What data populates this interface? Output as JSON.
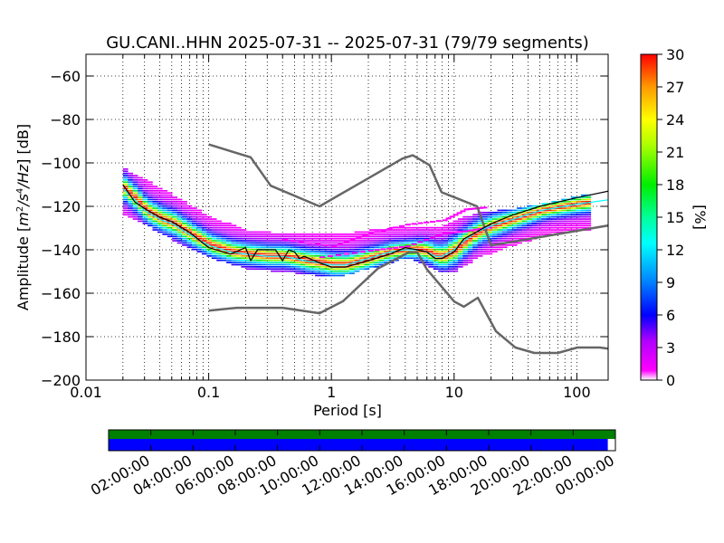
{
  "chart_data": {
    "type": "heatmap",
    "title": "GU.CANI..HHN   2025-07-31 -- 2025-07-31  (79/79 segments)",
    "xlabel": "Period [s]",
    "ylabel": "Amplitude [m²/s⁴/Hz] [dB]",
    "x_scale": "log",
    "xlim": [
      0.01,
      180
    ],
    "ylim": [
      -200,
      -50
    ],
    "x_ticks": [
      {
        "value": 0.01,
        "label": "0.01"
      },
      {
        "value": 0.1,
        "label": "0.1"
      },
      {
        "value": 1,
        "label": "1"
      },
      {
        "value": 10,
        "label": "10"
      },
      {
        "value": 100,
        "label": "100"
      }
    ],
    "y_ticks": [
      {
        "value": -60,
        "label": "−60"
      },
      {
        "value": -80,
        "label": "−80"
      },
      {
        "value": -100,
        "label": "−100"
      },
      {
        "value": -120,
        "label": "−120"
      },
      {
        "value": -140,
        "label": "−140"
      },
      {
        "value": -160,
        "label": "−160"
      },
      {
        "value": -180,
        "label": "−180"
      },
      {
        "value": -200,
        "label": "−200"
      }
    ],
    "grid": true,
    "colorbar": {
      "label": "[%]",
      "range": [
        0,
        30
      ],
      "ticks": [
        "0",
        "3",
        "6",
        "9",
        "12",
        "15",
        "18",
        "21",
        "24",
        "27",
        "30"
      ]
    },
    "reference_curves": {
      "new_high_noise_model": [
        [
          0.1,
          -91.5
        ],
        [
          0.22,
          -97.4
        ],
        [
          0.32,
          -110.5
        ],
        [
          0.8,
          -120
        ],
        [
          3.8,
          -98
        ],
        [
          4.6,
          -96.5
        ],
        [
          6.3,
          -101
        ],
        [
          7.9,
          -113.5
        ],
        [
          15.4,
          -120
        ],
        [
          20,
          -138
        ],
        [
          354,
          -126
        ]
      ],
      "new_low_noise_model": [
        [
          0.1,
          -168
        ],
        [
          0.17,
          -166.7
        ],
        [
          0.4,
          -166.7
        ],
        [
          0.8,
          -169.2
        ],
        [
          1.24,
          -163.7
        ],
        [
          2.4,
          -148.6
        ],
        [
          4.3,
          -141.1
        ],
        [
          5,
          -141.1
        ],
        [
          6,
          -149
        ],
        [
          10,
          -163.8
        ],
        [
          12,
          -166.2
        ],
        [
          15.6,
          -162.1
        ],
        [
          21.9,
          -177.5
        ],
        [
          31.6,
          -185
        ],
        [
          45,
          -187.5
        ],
        [
          70,
          -187.5
        ],
        [
          101,
          -185
        ],
        [
          154,
          -185
        ],
        [
          328,
          -187.5
        ]
      ]
    },
    "mean_psd": [
      [
        0.02,
        -112
      ],
      [
        0.025,
        -117
      ],
      [
        0.03,
        -122
      ],
      [
        0.04,
        -126
      ],
      [
        0.05,
        -128
      ],
      [
        0.07,
        -133
      ],
      [
        0.1,
        -138
      ],
      [
        0.15,
        -141
      ],
      [
        0.2,
        -142
      ],
      [
        0.3,
        -143
      ],
      [
        0.4,
        -143
      ],
      [
        0.5,
        -144
      ],
      [
        0.6,
        -145
      ],
      [
        0.8,
        -146
      ],
      [
        1,
        -147
      ],
      [
        1.3,
        -147
      ],
      [
        1.5,
        -146
      ],
      [
        2,
        -144
      ],
      [
        3,
        -141
      ],
      [
        4,
        -140
      ],
      [
        5,
        -140
      ],
      [
        6,
        -141
      ],
      [
        7,
        -143
      ],
      [
        8,
        -143
      ],
      [
        10,
        -140
      ],
      [
        12,
        -136
      ],
      [
        15,
        -132
      ],
      [
        20,
        -129
      ],
      [
        30,
        -126
      ],
      [
        50,
        -122
      ],
      [
        100,
        -119
      ],
      [
        180,
        -117
      ]
    ],
    "mode_psd": [
      [
        0.02,
        -110
      ],
      [
        0.025,
        -118
      ],
      [
        0.03,
        -121
      ],
      [
        0.04,
        -125
      ],
      [
        0.05,
        -127
      ],
      [
        0.07,
        -132
      ],
      [
        0.1,
        -139
      ],
      [
        0.15,
        -142
      ],
      [
        0.2,
        -139
      ],
      [
        0.22,
        -145
      ],
      [
        0.25,
        -140
      ],
      [
        0.35,
        -140
      ],
      [
        0.4,
        -145
      ],
      [
        0.45,
        -140
      ],
      [
        0.5,
        -141
      ],
      [
        0.55,
        -144
      ],
      [
        0.6,
        -143
      ],
      [
        0.8,
        -146
      ],
      [
        1,
        -148
      ],
      [
        1.3,
        -148
      ],
      [
        1.5,
        -147
      ],
      [
        2,
        -145
      ],
      [
        3,
        -142
      ],
      [
        4,
        -139
      ],
      [
        5,
        -140
      ],
      [
        6,
        -141
      ],
      [
        7,
        -144
      ],
      [
        8,
        -144
      ],
      [
        10,
        -141
      ],
      [
        12,
        -135
      ],
      [
        15,
        -132
      ],
      [
        20,
        -128
      ],
      [
        30,
        -124
      ],
      [
        50,
        -120
      ],
      [
        100,
        -116
      ],
      [
        180,
        -113
      ]
    ],
    "upper_envelope": [
      [
        0.02,
        -103
      ],
      [
        0.03,
        -108
      ],
      [
        0.05,
        -115
      ],
      [
        0.1,
        -125
      ],
      [
        0.2,
        -131
      ],
      [
        0.5,
        -133
      ],
      [
        1,
        -133
      ],
      [
        2,
        -131
      ],
      [
        4,
        -129
      ],
      [
        7,
        -130
      ],
      [
        10,
        -126
      ],
      [
        15,
        -123
      ],
      [
        30,
        -121
      ],
      [
        60,
        -118
      ],
      [
        100,
        -115
      ],
      [
        180,
        -113
      ]
    ],
    "lower_envelope": [
      [
        0.02,
        -124
      ],
      [
        0.03,
        -129
      ],
      [
        0.05,
        -136
      ],
      [
        0.1,
        -144
      ],
      [
        0.2,
        -149
      ],
      [
        0.5,
        -151
      ],
      [
        1,
        -153
      ],
      [
        2,
        -149
      ],
      [
        4,
        -144
      ],
      [
        7,
        -150
      ],
      [
        10,
        -150
      ],
      [
        15,
        -144
      ],
      [
        30,
        -138
      ],
      [
        60,
        -133
      ],
      [
        100,
        -131
      ],
      [
        180,
        -131
      ]
    ],
    "side_traces": [
      [
        [
          0.4,
          -135
        ],
        [
          1,
          -138
        ],
        [
          2,
          -132
        ],
        [
          4,
          -128
        ],
        [
          8,
          -126
        ],
        [
          12,
          -121
        ],
        [
          18,
          -120
        ]
      ],
      [
        [
          0.8,
          -143
        ],
        [
          2,
          -140
        ],
        [
          4,
          -138
        ],
        [
          8,
          -132
        ],
        [
          12,
          -131
        ],
        [
          20,
          -129
        ]
      ]
    ]
  },
  "timeline": {
    "labels": [
      "02:00:00",
      "04:00:00",
      "06:00:00",
      "08:00:00",
      "10:00:00",
      "12:00:00",
      "14:00:00",
      "16:00:00",
      "18:00:00",
      "20:00:00",
      "22:00:00",
      "00:00:00"
    ],
    "data_coverage": 1.0,
    "processed_coverage": 0.985
  },
  "colors": {
    "noise_model": "#666666",
    "mean_line": "#00ffff",
    "mode_line": "#000000",
    "timeline_data": "#008000",
    "timeline_processed": "#0000ff"
  }
}
